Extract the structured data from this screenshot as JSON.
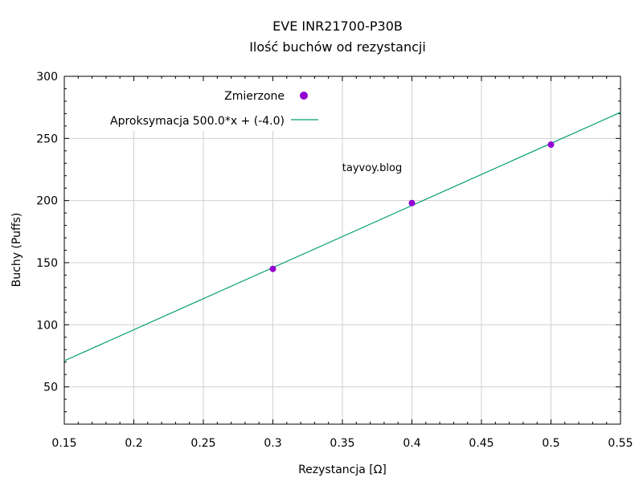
{
  "chart_data": {
    "type": "scatter",
    "title": "EVE INR21700-P30B",
    "subtitle": "Ilość buchów od rezystancji",
    "xlabel": "Rezystancja [Ω]",
    "ylabel": "Buchy (Puffs)",
    "xlim": [
      0.15,
      0.55
    ],
    "ylim": [
      20,
      300
    ],
    "x_ticks": [
      0.15,
      0.2,
      0.25,
      0.3,
      0.35,
      0.4,
      0.45,
      0.5,
      0.55
    ],
    "x_tick_labels": [
      "0.15",
      "0.2",
      "0.25",
      "0.3",
      "0.35",
      "0.4",
      "0.45",
      "0.5",
      "0.55"
    ],
    "y_ticks": [
      50,
      100,
      150,
      200,
      250,
      300
    ],
    "y_tick_labels": [
      "50",
      "100",
      "150",
      "200",
      "250",
      "300"
    ],
    "grid": true,
    "legend_position": "top-left",
    "annotation": "tayvoy.blog",
    "annotation_color": "#0000ff",
    "series": [
      {
        "name": "Zmierzone",
        "kind": "points",
        "color": "#9400d3",
        "x": [
          0.3,
          0.4,
          0.5
        ],
        "y": [
          145,
          198,
          245
        ]
      },
      {
        "name": "Aproksymacja",
        "formula": "500.0*x + (-4.0)",
        "kind": "line",
        "color": "#009e73",
        "slope": 500.0,
        "intercept": -4.0
      }
    ]
  }
}
